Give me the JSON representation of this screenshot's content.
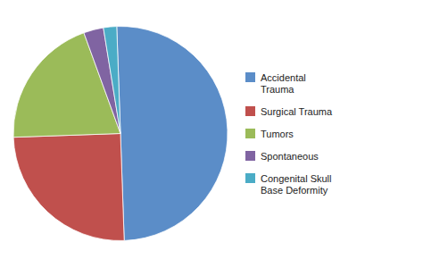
{
  "chart_data": {
    "type": "pie",
    "categories": [
      "Accidental\nTrauma",
      "Surgical Trauma",
      "Tumors",
      "Spontaneous",
      "Congenital Skull\nBase Deformity"
    ],
    "values": [
      50,
      25,
      20,
      3,
      2
    ],
    "colors": [
      "#5B8DC8",
      "#C0504D",
      "#9BBB59",
      "#8064A2",
      "#4BACC6"
    ],
    "legend": "right"
  }
}
